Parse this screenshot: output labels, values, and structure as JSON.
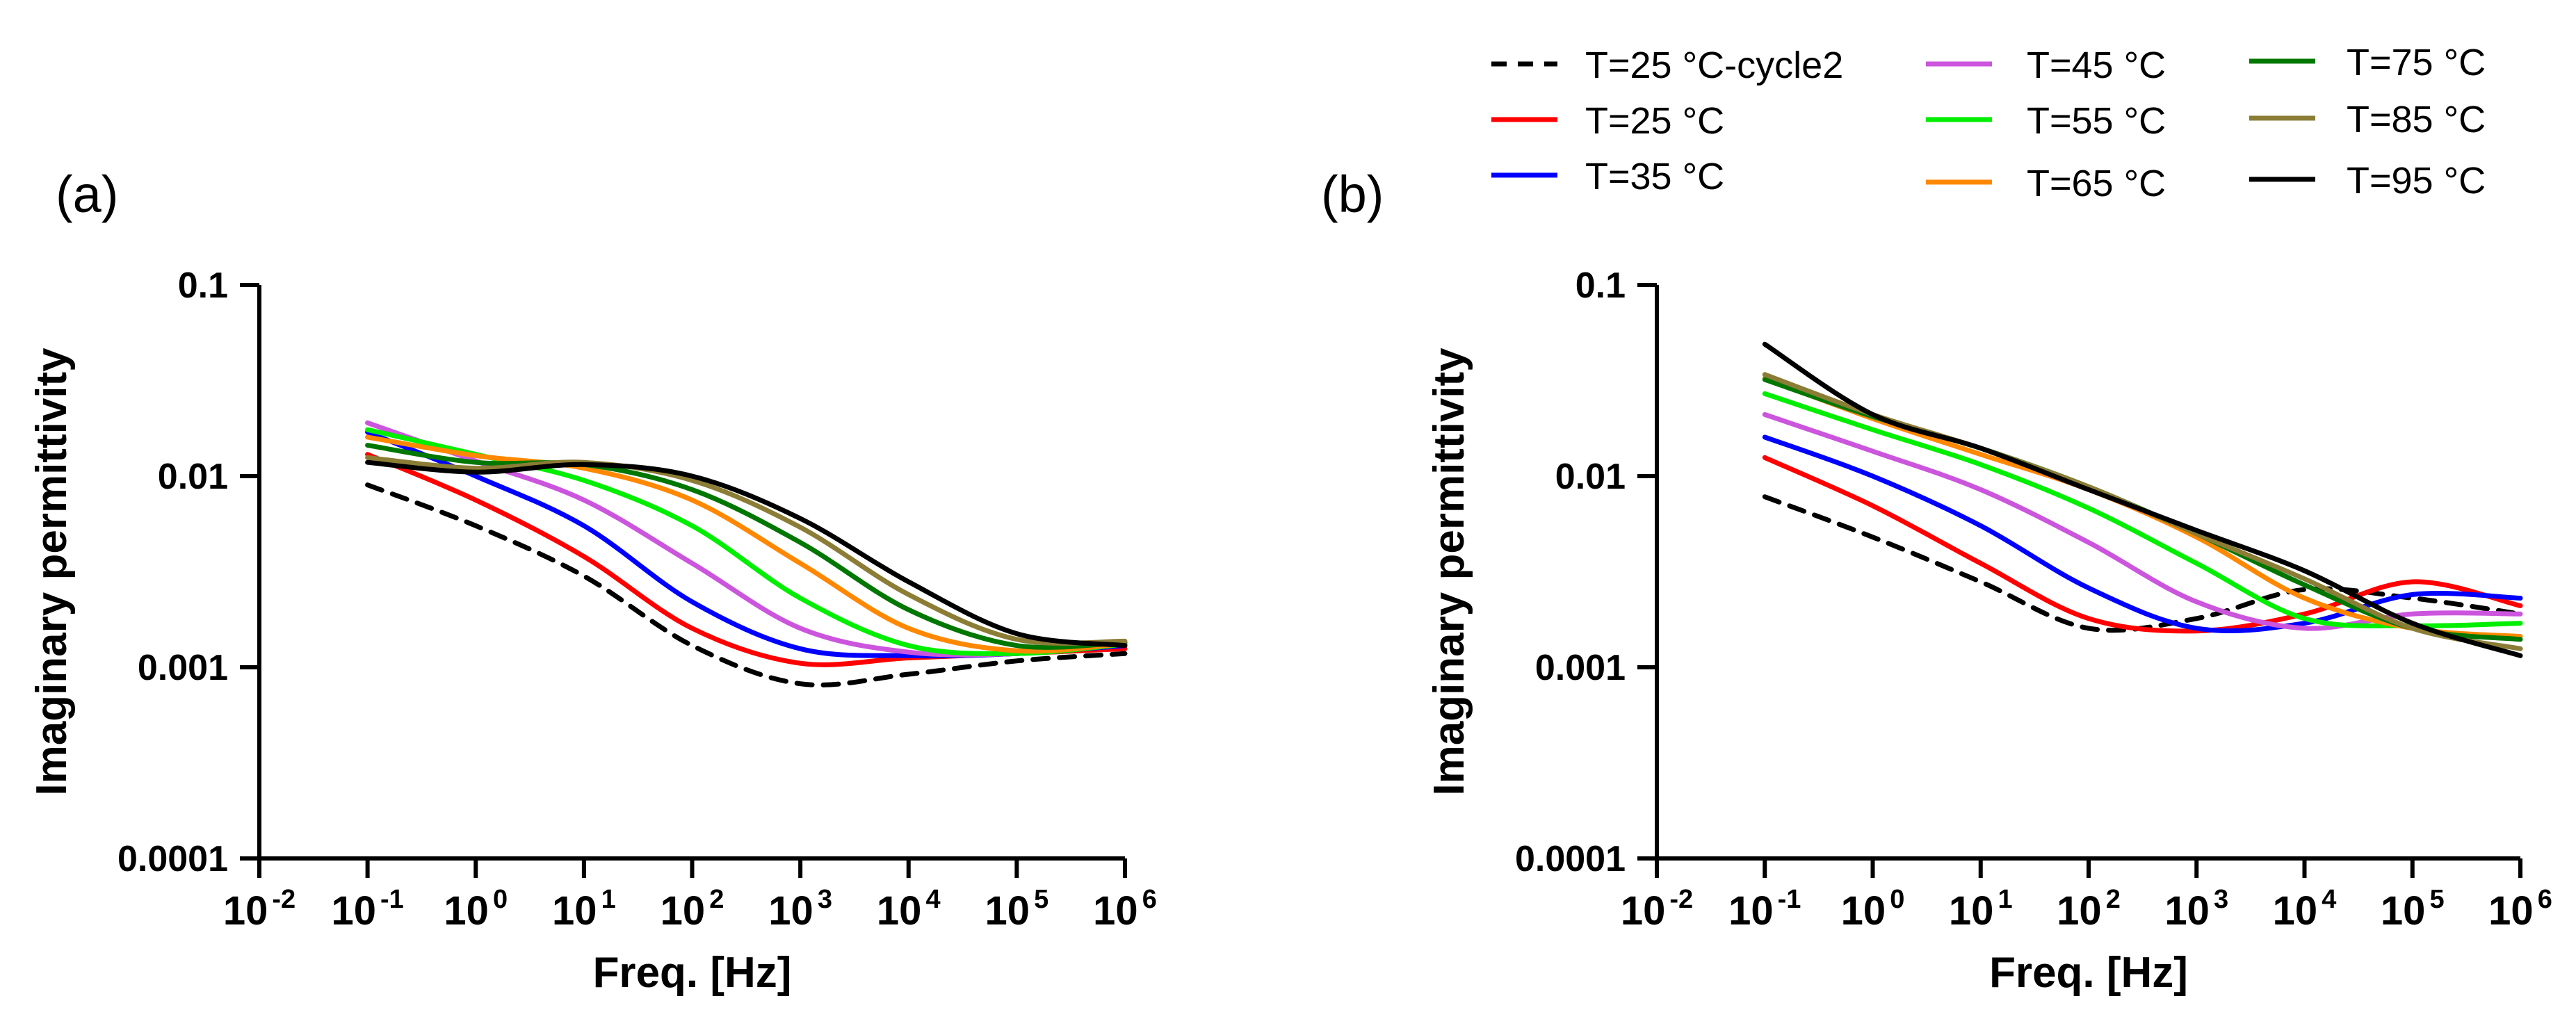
{
  "chart_data": [
    {
      "type": "line",
      "panel_label": "(a)",
      "xlabel": "Freq. [Hz]",
      "ylabel": "Imaginary permittivity",
      "xscale": "log",
      "yscale": "log",
      "xlim": [
        0.01,
        1000000
      ],
      "ylim": [
        0.0001,
        0.1
      ],
      "x_ticks": [
        {
          "base": "10",
          "exp": "-2"
        },
        {
          "base": "10",
          "exp": "-1"
        },
        {
          "base": "10",
          "exp": "0"
        },
        {
          "base": "10",
          "exp": "1"
        },
        {
          "base": "10",
          "exp": "2"
        },
        {
          "base": "10",
          "exp": "3"
        },
        {
          "base": "10",
          "exp": "4"
        },
        {
          "base": "10",
          "exp": "5"
        },
        {
          "base": "10",
          "exp": "6"
        }
      ],
      "y_ticks": [
        "0.0001",
        "0.001",
        "0.01",
        "0.1"
      ],
      "x": [
        0.1,
        1,
        10,
        100,
        1000,
        10000,
        100000,
        1000000
      ],
      "series": [
        {
          "name": "T=25 °C-cycle2",
          "color": "#000000",
          "dash": true,
          "values": [
            0.009,
            0.0055,
            0.003,
            0.0013,
            0.00082,
            0.00092,
            0.00108,
            0.00118
          ]
        },
        {
          "name": "T=25 °C",
          "color": "#ff0000",
          "values": [
            0.013,
            0.0075,
            0.0038,
            0.0016,
            0.00105,
            0.00112,
            0.00118,
            0.00125
          ]
        },
        {
          "name": "T=35 °C",
          "color": "#0000ff",
          "values": [
            0.017,
            0.01,
            0.0055,
            0.0022,
            0.00125,
            0.00115,
            0.00118,
            0.0013
          ]
        },
        {
          "name": "T=45 °C",
          "color": "#cc55dd",
          "values": [
            0.019,
            0.012,
            0.0075,
            0.0035,
            0.0016,
            0.0012,
            0.00118,
            0.00132
          ]
        },
        {
          "name": "T=55 °C",
          "color": "#00ee00",
          "values": [
            0.0175,
            0.013,
            0.0095,
            0.0055,
            0.0023,
            0.0013,
            0.00118,
            0.00132
          ]
        },
        {
          "name": "T=65 °C",
          "color": "#ff8800",
          "values": [
            0.016,
            0.0128,
            0.011,
            0.0075,
            0.0035,
            0.0016,
            0.00122,
            0.00133
          ]
        },
        {
          "name": "T=75 °C",
          "color": "#007700",
          "values": [
            0.0145,
            0.0118,
            0.0115,
            0.0085,
            0.0045,
            0.002,
            0.0013,
            0.00135
          ]
        },
        {
          "name": "T=85 °C",
          "color": "#8b7d35",
          "values": [
            0.0125,
            0.011,
            0.0118,
            0.0095,
            0.0054,
            0.0024,
            0.0014,
            0.00137
          ]
        },
        {
          "name": "T=95 °C",
          "color": "#000000",
          "values": [
            0.0118,
            0.0105,
            0.0115,
            0.01,
            0.006,
            0.0028,
            0.0015,
            0.0013
          ]
        }
      ]
    },
    {
      "type": "line",
      "panel_label": "(b)",
      "xlabel": "Freq. [Hz]",
      "ylabel": "Imaginary permittivity",
      "xscale": "log",
      "yscale": "log",
      "xlim": [
        0.01,
        1000000
      ],
      "ylim": [
        0.0001,
        0.1
      ],
      "x_ticks": [
        {
          "base": "10",
          "exp": "-2"
        },
        {
          "base": "10",
          "exp": "-1"
        },
        {
          "base": "10",
          "exp": "0"
        },
        {
          "base": "10",
          "exp": "1"
        },
        {
          "base": "10",
          "exp": "2"
        },
        {
          "base": "10",
          "exp": "3"
        },
        {
          "base": "10",
          "exp": "4"
        },
        {
          "base": "10",
          "exp": "5"
        },
        {
          "base": "10",
          "exp": "6"
        }
      ],
      "y_ticks": [
        "0.0001",
        "0.001",
        "0.01",
        "0.1"
      ],
      "x": [
        0.1,
        1,
        10,
        100,
        1000,
        10000,
        100000,
        1000000
      ],
      "series": [
        {
          "name": "T=25 °C-cycle2",
          "color": "#000000",
          "dash": true,
          "values": [
            0.0078,
            0.0048,
            0.0028,
            0.0016,
            0.0018,
            0.00255,
            0.0023,
            0.0019
          ]
        },
        {
          "name": "T=25 °C",
          "color": "#ff0000",
          "values": [
            0.0125,
            0.007,
            0.0035,
            0.0018,
            0.00155,
            0.0019,
            0.0028,
            0.0021
          ]
        },
        {
          "name": "T=35 °C",
          "color": "#0000ff",
          "values": [
            0.016,
            0.01,
            0.0055,
            0.0026,
            0.0016,
            0.0017,
            0.0024,
            0.0023
          ]
        },
        {
          "name": "T=45 °C",
          "color": "#cc55dd",
          "values": [
            0.021,
            0.0135,
            0.0085,
            0.0045,
            0.0022,
            0.0016,
            0.0019,
            0.0019
          ]
        },
        {
          "name": "T=55 °C",
          "color": "#00ee00",
          "values": [
            0.027,
            0.0175,
            0.0115,
            0.0068,
            0.0035,
            0.0018,
            0.00165,
            0.0017
          ]
        },
        {
          "name": "T=65 °C",
          "color": "#ff8800",
          "values": [
            0.0325,
            0.02,
            0.013,
            0.0085,
            0.0048,
            0.0023,
            0.0016,
            0.00145
          ]
        },
        {
          "name": "T=75 °C",
          "color": "#007700",
          "values": [
            0.032,
            0.0205,
            0.014,
            0.0088,
            0.005,
            0.0027,
            0.0016,
            0.0014
          ]
        },
        {
          "name": "T=85 °C",
          "color": "#8b7d35",
          "values": [
            0.034,
            0.021,
            0.014,
            0.0088,
            0.005,
            0.0029,
            0.0016,
            0.00125
          ]
        },
        {
          "name": "T=95 °C",
          "color": "#000000",
          "values": [
            0.049,
            0.021,
            0.014,
            0.0085,
            0.0052,
            0.0032,
            0.0017,
            0.00115
          ]
        }
      ]
    }
  ]
}
